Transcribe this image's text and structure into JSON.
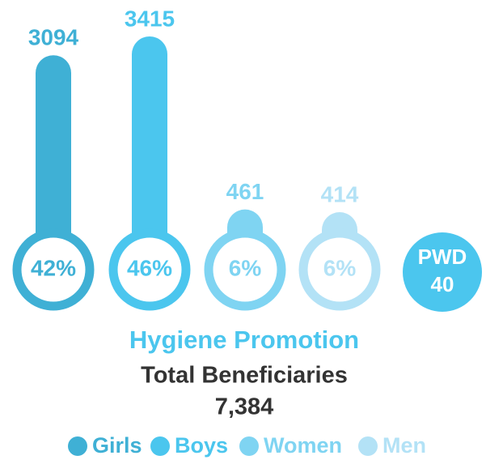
{
  "chart_data": {
    "type": "bar",
    "title": "Hygiene Promotion",
    "subtitle": "Total Beneficiaries",
    "total": "7,384",
    "categories": [
      "Girls",
      "Boys",
      "Women",
      "Men"
    ],
    "values": [
      3094,
      3415,
      461,
      414
    ],
    "percentages": [
      "42%",
      "46%",
      "6%",
      "6%"
    ],
    "colors": [
      "#3fb0d5",
      "#4bc6ee",
      "#7fd4f2",
      "#b3e2f6"
    ],
    "extra": {
      "label": "PWD",
      "value": "40",
      "color": "#4bc6ee"
    },
    "title_color": "#4bc6ee"
  }
}
